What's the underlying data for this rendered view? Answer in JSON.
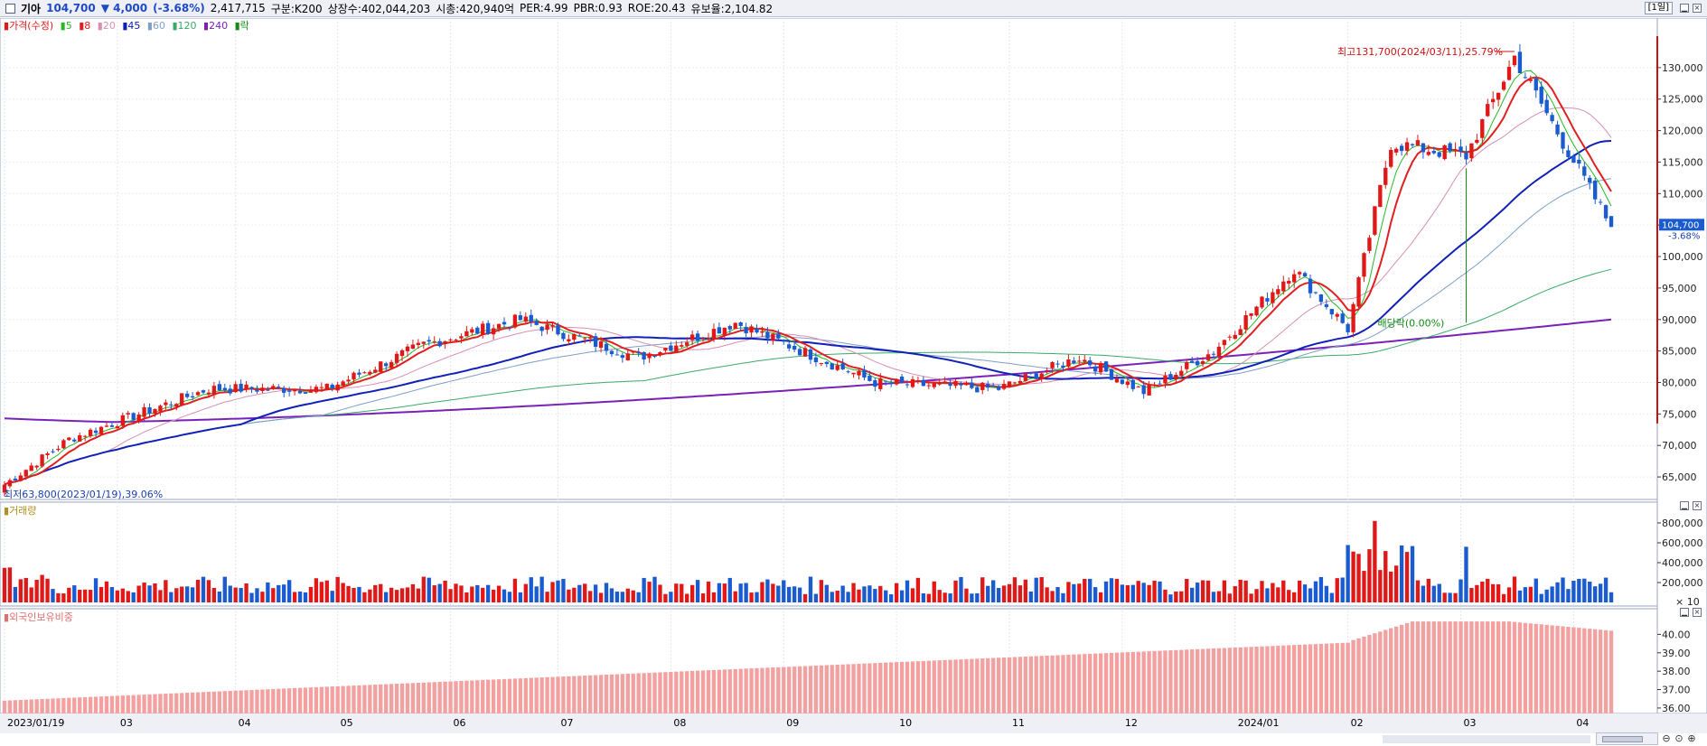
{
  "header": {
    "name": "기아",
    "price": "104,700",
    "change": "▼ 4,000",
    "change_pct": "(-3.68%)",
    "volume": "2,417,715",
    "market": "구분:K200",
    "shares": "상장수:402,044,203",
    "mcap": "시총:420,940억",
    "per": "PER:4.99",
    "pbr": "PBR:0.93",
    "roe": "ROE:20.43",
    "reserve": "유보율:2,104.82",
    "period": "[1일]"
  },
  "legend_price": {
    "label": "가격(수정)",
    "ma5": "5",
    "ma8": "8",
    "ma20": "20",
    "ma45": "45",
    "ma60": "60",
    "ma120": "120",
    "ma240": "240",
    "ex": "락"
  },
  "legend_volume": {
    "label": "거래량"
  },
  "legend_foreign": {
    "label": "외국인보유비중"
  },
  "annotations": {
    "high": "최고131,700(2024/03/11),25.79%",
    "low": "최저63,800(2023/01/19),39.06%",
    "dividend": "배당락(0.00%)",
    "last_price": "104,700",
    "last_pct": "-3.68%"
  },
  "colors": {
    "up": "#e01818",
    "down": "#1a5bd0",
    "ma5": "#28b828",
    "ma8": "#e02020",
    "ma20": "#d98fb4",
    "ma45": "#1020b8",
    "ma60": "#7e9fc8",
    "ma120": "#3aaa6a",
    "ma240": "#7a22b8",
    "foreign": "#f3a0a0"
  },
  "chart_data": [
    {
      "type": "candlestick",
      "title": "기아 가격(수정)",
      "x_start": "2023/01/19",
      "x_end": "2024/04",
      "x_ticks": [
        "2023/01/19",
        "03",
        "04",
        "05",
        "06",
        "07",
        "08",
        "09",
        "10",
        "11",
        "12",
        "2024/01",
        "02",
        "03",
        "04"
      ],
      "y_ticks": [
        "130,000",
        "125,000",
        "120,000",
        "115,000",
        "110,000",
        "105,000",
        "100,000",
        "95,000",
        "90,000",
        "85,000",
        "80,000",
        "75,000",
        "70,000",
        "65,000"
      ],
      "ylim": [
        62000,
        135000
      ],
      "key_points": [
        {
          "x": "2023/01/19",
          "close": 63800
        },
        {
          "x": "2023/02",
          "close": 71000
        },
        {
          "x": "2023/03",
          "close": 79000
        },
        {
          "x": "2023/04",
          "close": 79000
        },
        {
          "x": "2023/05",
          "close": 86000
        },
        {
          "x": "2023/05 late",
          "close": 90000
        },
        {
          "x": "2023/06",
          "close": 84000
        },
        {
          "x": "2023/07",
          "close": 89500
        },
        {
          "x": "2023/08",
          "close": 80000
        },
        {
          "x": "2023/09",
          "close": 79000
        },
        {
          "x": "2023/10",
          "close": 84000
        },
        {
          "x": "2023/11",
          "close": 78500
        },
        {
          "x": "2023/12",
          "close": 85000
        },
        {
          "x": "2023/12 late",
          "close": 98000
        },
        {
          "x": "2024/01",
          "close": 88500
        },
        {
          "x": "2024/02",
          "close": 118000
        },
        {
          "x": "2024/03",
          "close": 116000
        },
        {
          "x": "2024/03/11",
          "close": 131700
        },
        {
          "x": "2024/04",
          "close": 104700
        }
      ],
      "ma240_range": [
        73500,
        90000
      ],
      "ma45_end": 116000
    },
    {
      "type": "bar",
      "title": "거래량",
      "y_ticks": [
        "800,000",
        "600,000",
        "400,000",
        "200,000"
      ],
      "y_unit": "× 10",
      "peak": 820000
    },
    {
      "type": "area",
      "title": "외국인보유비중",
      "y_ticks": [
        "40.00",
        "39.00",
        "38.00",
        "37.00",
        "36.00"
      ],
      "start": 36.4,
      "end": 40.2,
      "peak": 40.7
    }
  ]
}
